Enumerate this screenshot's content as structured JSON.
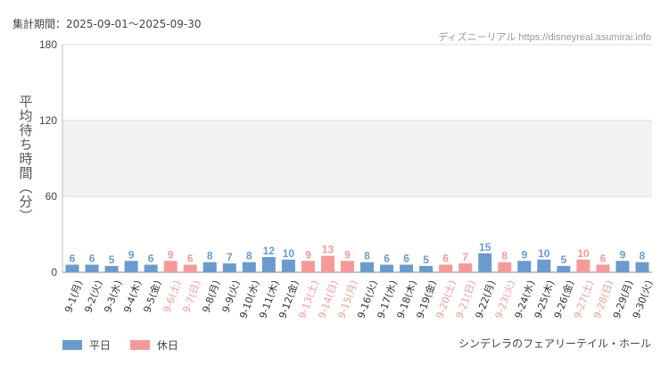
{
  "header": {
    "period": "集計期間：2025-09-01～2025-09-30",
    "source": "ディズニーリアル https://disneyreal.asumirai.info"
  },
  "footer": {
    "attraction": "シンデレラのフェアリーテイル・ホール"
  },
  "colors": {
    "weekday": "#6b9bcc",
    "holiday": "#f59a9a",
    "band": "#f2f2f2",
    "grid": "#dddddd"
  },
  "chart_data": {
    "type": "bar",
    "ylabel": "平均待ち時間（分）",
    "ylim": [
      0,
      180
    ],
    "yticks": [
      0,
      60,
      120,
      180
    ],
    "shaded_band": [
      60,
      120
    ],
    "legend": [
      "平日",
      "休日"
    ],
    "legend_position": "bottom-left",
    "categories": [
      "9-1(月)",
      "9-2(火)",
      "9-3(水)",
      "9-4(木)",
      "9-5(金)",
      "9-6(土)",
      "9-7(日)",
      "9-8(月)",
      "9-9(火)",
      "9-10(水)",
      "9-11(木)",
      "9-12(金)",
      "9-13(土)",
      "9-14(日)",
      "9-15(月)",
      "9-16(火)",
      "9-17(水)",
      "9-18(木)",
      "9-19(金)",
      "9-20(土)",
      "9-21(日)",
      "9-22(月)",
      "9-23(火)",
      "9-24(水)",
      "9-25(木)",
      "9-26(金)",
      "9-27(土)",
      "9-28(日)",
      "9-29(月)",
      "9-30(火)"
    ],
    "values": [
      6,
      6,
      5,
      9,
      6,
      9,
      6,
      8,
      7,
      8,
      12,
      10,
      9,
      13,
      9,
      8,
      6,
      6,
      5,
      6,
      7,
      15,
      8,
      9,
      10,
      5,
      10,
      6,
      9,
      8
    ],
    "holiday": [
      false,
      false,
      false,
      false,
      false,
      true,
      true,
      false,
      false,
      false,
      false,
      false,
      true,
      true,
      true,
      false,
      false,
      false,
      false,
      true,
      true,
      false,
      true,
      false,
      false,
      false,
      true,
      true,
      false,
      false
    ]
  }
}
